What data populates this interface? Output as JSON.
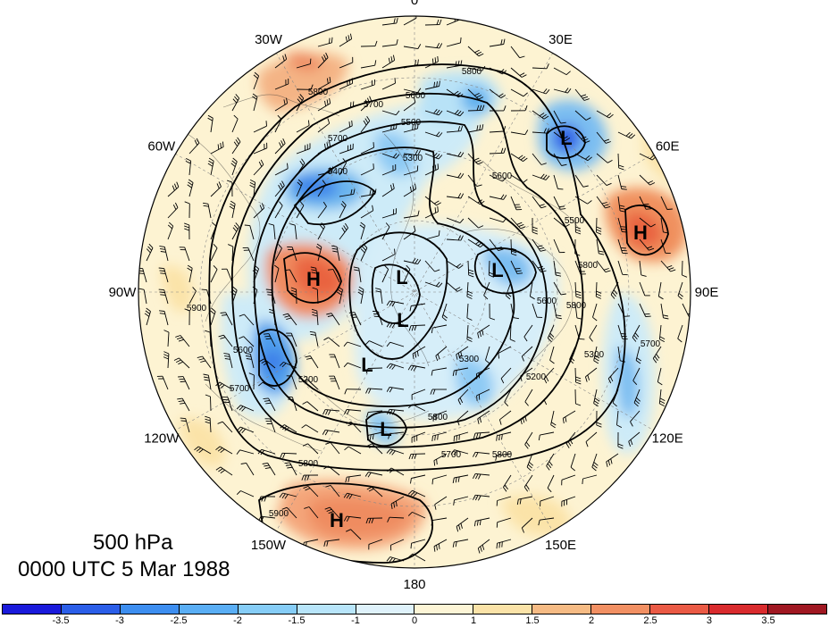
{
  "map": {
    "projection": "north polar stereographic",
    "longitude_labels": [
      {
        "name": "lon-0",
        "text": "0",
        "angle": 0
      },
      {
        "name": "lon-30w",
        "text": "30W",
        "angle": 30
      },
      {
        "name": "lon-60w",
        "text": "60W",
        "angle": 60
      },
      {
        "name": "lon-90w",
        "text": "90W",
        "angle": 90
      },
      {
        "name": "lon-120w",
        "text": "120W",
        "angle": 120
      },
      {
        "name": "lon-150w",
        "text": "150W",
        "angle": 150
      },
      {
        "name": "lon-180",
        "text": "180",
        "angle": 180
      },
      {
        "name": "lon-150e",
        "text": "150E",
        "angle": 210
      },
      {
        "name": "lon-120e",
        "text": "120E",
        "angle": 240
      },
      {
        "name": "lon-90e",
        "text": "90E",
        "angle": 270
      },
      {
        "name": "lon-60e",
        "text": "60E",
        "angle": 300
      },
      {
        "name": "lon-30e",
        "text": "30E",
        "angle": 330
      }
    ],
    "contour_labels": [
      "5800",
      "5700",
      "5600",
      "5500",
      "5400",
      "5300",
      "5200",
      "5900",
      "5800",
      "5700",
      "5600",
      "5500",
      "5700",
      "5800",
      "5800",
      "5700",
      "5800",
      "5300",
      "5200",
      "5300",
      "5600",
      "5700",
      "5800",
      "5900",
      "5600",
      "5800"
    ],
    "pressure_centers": [
      {
        "name": "high-center-east-atlantic",
        "type": "H"
      },
      {
        "name": "high-center-siberia",
        "type": "H"
      },
      {
        "name": "high-center-north-pacific",
        "type": "H"
      },
      {
        "name": "low-center-north-atlantic",
        "type": "L"
      },
      {
        "name": "low-center-arctic-1",
        "type": "L"
      },
      {
        "name": "low-center-arctic-2",
        "type": "L"
      },
      {
        "name": "low-center-arctic-3",
        "type": "L"
      },
      {
        "name": "low-center-canada",
        "type": "L"
      },
      {
        "name": "low-center-east-siberia",
        "type": "L"
      }
    ]
  },
  "title": {
    "level": "500 hPa",
    "time": "0000 UTC 5 Mar 1988"
  },
  "colorbar": {
    "tick_labels": [
      "-3.5",
      "-3",
      "-2.5",
      "-2",
      "-1.5",
      "-1",
      "0",
      "1",
      "1.5",
      "2",
      "2.5",
      "3",
      "3.5"
    ],
    "colors": [
      "#1a1adb",
      "#2b5ee8",
      "#3d8ef0",
      "#5aaef5",
      "#86cdf7",
      "#b8e5fa",
      "#dff2fb",
      "#fdf5d6",
      "#fbe3a8",
      "#f6bb84",
      "#f29063",
      "#ea5a45",
      "#d92b2e",
      "#a01822"
    ]
  }
}
